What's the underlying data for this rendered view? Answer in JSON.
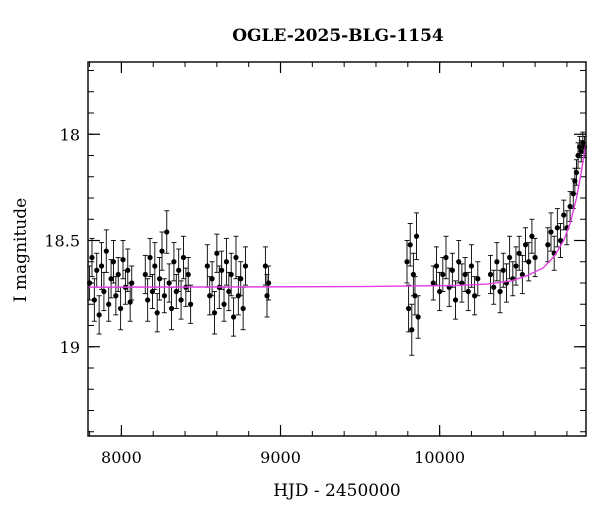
{
  "chart_data": {
    "type": "scatter",
    "title": "OGLE-2025-BLG-1154",
    "xlabel": "HJD - 2450000",
    "ylabel": "I magnitude",
    "xlim": [
      7790,
      10920
    ],
    "ylim": [
      19.42,
      17.66
    ],
    "y_inverted": true,
    "grid": false,
    "x_ticks": [
      {
        "value": 8000,
        "label": "8000"
      },
      {
        "value": 9000,
        "label": "9000"
      },
      {
        "value": 10000,
        "label": "10000"
      }
    ],
    "y_ticks": [
      {
        "value": 18,
        "label": "18"
      },
      {
        "value": 18.5,
        "label": "18.5"
      },
      {
        "value": 19,
        "label": "19"
      }
    ],
    "x_minor_step": 200,
    "y_minor_step": 0.1,
    "series": [
      {
        "kind": "points_with_errorbars",
        "color": "#000000",
        "points": [
          [
            7800,
            18.7,
            0.08
          ],
          [
            7815,
            18.58,
            0.09
          ],
          [
            7830,
            18.78,
            0.1
          ],
          [
            7845,
            18.64,
            0.08
          ],
          [
            7860,
            18.85,
            0.09
          ],
          [
            7875,
            18.62,
            0.11
          ],
          [
            7890,
            18.74,
            0.09
          ],
          [
            7905,
            18.55,
            0.1
          ],
          [
            7920,
            18.8,
            0.08
          ],
          [
            7935,
            18.68,
            0.09
          ],
          [
            7950,
            18.6,
            0.1
          ],
          [
            7965,
            18.76,
            0.09
          ],
          [
            7980,
            18.66,
            0.08
          ],
          [
            7995,
            18.82,
            0.1
          ],
          [
            8010,
            18.59,
            0.09
          ],
          [
            8025,
            18.72,
            0.08
          ],
          [
            8040,
            18.64,
            0.1
          ],
          [
            8055,
            18.79,
            0.09
          ],
          [
            8065,
            18.7,
            0.08
          ],
          [
            8150,
            18.66,
            0.09
          ],
          [
            8165,
            18.78,
            0.1
          ],
          [
            8180,
            18.58,
            0.09
          ],
          [
            8195,
            18.74,
            0.08
          ],
          [
            8210,
            18.62,
            0.11
          ],
          [
            8225,
            18.84,
            0.09
          ],
          [
            8240,
            18.68,
            0.1
          ],
          [
            8255,
            18.55,
            0.09
          ],
          [
            8270,
            18.76,
            0.08
          ],
          [
            8285,
            18.46,
            0.1
          ],
          [
            8300,
            18.7,
            0.09
          ],
          [
            8315,
            18.82,
            0.1
          ],
          [
            8330,
            18.6,
            0.09
          ],
          [
            8345,
            18.74,
            0.08
          ],
          [
            8360,
            18.64,
            0.1
          ],
          [
            8375,
            18.78,
            0.09
          ],
          [
            8390,
            18.58,
            0.1
          ],
          [
            8405,
            18.72,
            0.09
          ],
          [
            8420,
            18.66,
            0.08
          ],
          [
            8435,
            18.8,
            0.09
          ],
          [
            8540,
            18.62,
            0.1
          ],
          [
            8555,
            18.76,
            0.09
          ],
          [
            8570,
            18.68,
            0.08
          ],
          [
            8585,
            18.84,
            0.1
          ],
          [
            8600,
            18.56,
            0.09
          ],
          [
            8615,
            18.72,
            0.1
          ],
          [
            8630,
            18.64,
            0.09
          ],
          [
            8645,
            18.8,
            0.08
          ],
          [
            8660,
            18.6,
            0.11
          ],
          [
            8675,
            18.74,
            0.09
          ],
          [
            8690,
            18.66,
            0.1
          ],
          [
            8705,
            18.86,
            0.09
          ],
          [
            8720,
            18.58,
            0.1
          ],
          [
            8735,
            18.76,
            0.09
          ],
          [
            8750,
            18.68,
            0.08
          ],
          [
            8765,
            18.82,
            0.1
          ],
          [
            8780,
            18.62,
            0.09
          ],
          [
            8905,
            18.62,
            0.09
          ],
          [
            8915,
            18.76,
            0.1
          ],
          [
            8925,
            18.7,
            0.08
          ],
          [
            9795,
            18.6,
            0.1
          ],
          [
            9805,
            18.82,
            0.11
          ],
          [
            9815,
            18.52,
            0.1
          ],
          [
            9825,
            18.92,
            0.12
          ],
          [
            9835,
            18.66,
            0.1
          ],
          [
            9845,
            18.76,
            0.09
          ],
          [
            9855,
            18.48,
            0.11
          ],
          [
            9865,
            18.86,
            0.1
          ],
          [
            9960,
            18.7,
            0.08
          ],
          [
            9980,
            18.62,
            0.09
          ],
          [
            10000,
            18.74,
            0.09
          ],
          [
            10020,
            18.66,
            0.08
          ],
          [
            10040,
            18.58,
            0.1
          ],
          [
            10060,
            18.72,
            0.09
          ],
          [
            10080,
            18.64,
            0.08
          ],
          [
            10100,
            18.78,
            0.09
          ],
          [
            10120,
            18.6,
            0.1
          ],
          [
            10140,
            18.7,
            0.09
          ],
          [
            10160,
            18.66,
            0.08
          ],
          [
            10180,
            18.74,
            0.09
          ],
          [
            10200,
            18.62,
            0.1
          ],
          [
            10220,
            18.76,
            0.09
          ],
          [
            10240,
            18.68,
            0.08
          ],
          [
            10320,
            18.66,
            0.09
          ],
          [
            10340,
            18.72,
            0.08
          ],
          [
            10360,
            18.6,
            0.09
          ],
          [
            10380,
            18.74,
            0.1
          ],
          [
            10400,
            18.64,
            0.08
          ],
          [
            10420,
            18.7,
            0.09
          ],
          [
            10440,
            18.58,
            0.1
          ],
          [
            10460,
            18.68,
            0.08
          ],
          [
            10480,
            18.62,
            0.09
          ],
          [
            10500,
            18.56,
            0.08
          ],
          [
            10520,
            18.66,
            0.09
          ],
          [
            10540,
            18.52,
            0.08
          ],
          [
            10560,
            18.6,
            0.09
          ],
          [
            10580,
            18.48,
            0.08
          ],
          [
            10600,
            18.58,
            0.09
          ],
          [
            10680,
            18.52,
            0.08
          ],
          [
            10700,
            18.46,
            0.09
          ],
          [
            10720,
            18.56,
            0.08
          ],
          [
            10740,
            18.44,
            0.09
          ],
          [
            10760,
            18.5,
            0.08
          ],
          [
            10780,
            18.38,
            0.07
          ],
          [
            10800,
            18.44,
            0.08
          ],
          [
            10820,
            18.34,
            0.07
          ],
          [
            10840,
            18.28,
            0.07
          ],
          [
            10850,
            18.22,
            0.06
          ],
          [
            10860,
            18.18,
            0.06
          ],
          [
            10870,
            18.1,
            0.06
          ],
          [
            10880,
            18.06,
            0.05
          ],
          [
            10890,
            18.08,
            0.05
          ],
          [
            10900,
            18.04,
            0.05
          ],
          [
            10910,
            18.06,
            0.05
          ]
        ]
      },
      {
        "kind": "model_curve",
        "color": "#e33ee3",
        "x": [
          7790,
          8500,
          9500,
          10100,
          10300,
          10450,
          10550,
          10650,
          10720,
          10780,
          10820,
          10860,
          10890,
          10920
        ],
        "y": [
          18.72,
          18.719,
          18.717,
          18.712,
          18.705,
          18.69,
          18.665,
          18.63,
          18.575,
          18.5,
          18.42,
          18.3,
          18.18,
          18.04
        ]
      }
    ]
  }
}
